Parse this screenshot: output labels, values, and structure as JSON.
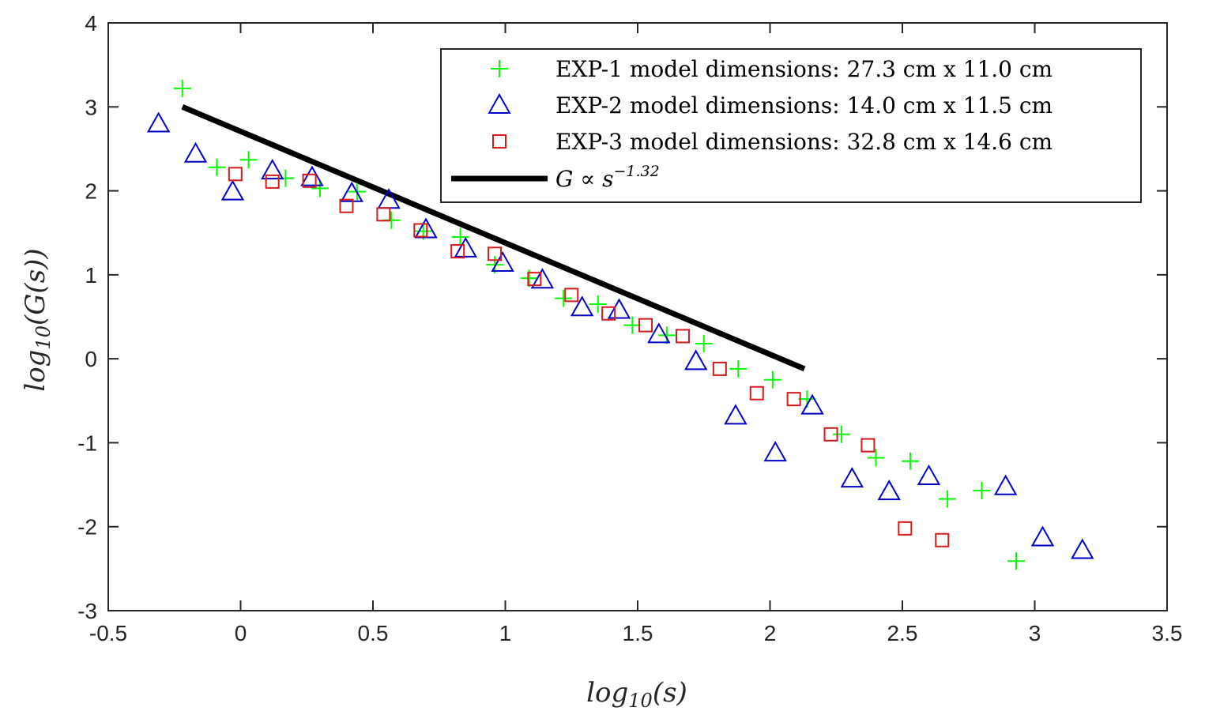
{
  "chart_data": {
    "type": "scatter",
    "xlabel": "log10(s)",
    "ylabel": "log10(G(s))",
    "xlim": [
      -0.5,
      3.5
    ],
    "ylim": [
      -3,
      4
    ],
    "xticks": [
      -0.5,
      0,
      0.5,
      1,
      1.5,
      2,
      2.5,
      3,
      3.5
    ],
    "yticks": [
      -3,
      -2,
      -1,
      0,
      1,
      2,
      3,
      4
    ],
    "xtick_labels": [
      "-0.5",
      "0",
      "0.5",
      "1",
      "1.5",
      "2",
      "2.5",
      "3",
      "3.5"
    ],
    "ytick_labels": [
      "-3",
      "-2",
      "-1",
      "0",
      "1",
      "2",
      "3",
      "4"
    ],
    "grid": false,
    "legend_position": "top-right",
    "series": [
      {
        "name": "EXP-1 model dimensions: 27.3 cm x 11.0 cm",
        "marker": "plus",
        "color": "#00ff00",
        "points": [
          [
            -0.22,
            3.22
          ],
          [
            -0.09,
            2.28
          ],
          [
            0.03,
            2.37
          ],
          [
            0.17,
            2.15
          ],
          [
            0.3,
            2.03
          ],
          [
            0.44,
            1.99
          ],
          [
            0.57,
            1.65
          ],
          [
            0.69,
            1.52
          ],
          [
            0.83,
            1.45
          ],
          [
            0.96,
            1.12
          ],
          [
            1.09,
            0.96
          ],
          [
            1.22,
            0.72
          ],
          [
            1.35,
            0.65
          ],
          [
            1.48,
            0.4
          ],
          [
            1.61,
            0.28
          ],
          [
            1.75,
            0.18
          ],
          [
            1.88,
            -0.12
          ],
          [
            2.01,
            -0.25
          ],
          [
            2.14,
            -0.48
          ],
          [
            2.27,
            -0.9
          ],
          [
            2.4,
            -1.18
          ],
          [
            2.53,
            -1.22
          ],
          [
            2.67,
            -1.67
          ],
          [
            2.8,
            -1.57
          ],
          [
            2.93,
            -2.41
          ]
        ]
      },
      {
        "name": "EXP-2 model dimensions: 14.0 cm x 11.5 cm",
        "marker": "triangle",
        "color": "#0000c8",
        "points": [
          [
            -0.31,
            2.8
          ],
          [
            -0.17,
            2.44
          ],
          [
            -0.03,
            1.99
          ],
          [
            0.12,
            2.24
          ],
          [
            0.27,
            2.16
          ],
          [
            0.42,
            1.97
          ],
          [
            0.56,
            1.89
          ],
          [
            0.7,
            1.54
          ],
          [
            0.85,
            1.31
          ],
          [
            0.99,
            1.14
          ],
          [
            1.14,
            0.94
          ],
          [
            1.29,
            0.61
          ],
          [
            1.43,
            0.58
          ],
          [
            1.58,
            0.29
          ],
          [
            1.72,
            -0.03
          ],
          [
            1.87,
            -0.68
          ],
          [
            2.02,
            -1.12
          ],
          [
            2.16,
            -0.56
          ],
          [
            2.31,
            -1.43
          ],
          [
            2.45,
            -1.58
          ],
          [
            2.6,
            -1.4
          ],
          [
            2.89,
            -1.52
          ],
          [
            3.03,
            -2.13
          ],
          [
            3.18,
            -2.28
          ]
        ]
      },
      {
        "name": "EXP-3 model dimensions: 32.8 cm x 14.6 cm",
        "marker": "square",
        "color": "#d7191c",
        "points": [
          [
            -0.02,
            2.2
          ],
          [
            0.12,
            2.11
          ],
          [
            0.26,
            2.12
          ],
          [
            0.4,
            1.82
          ],
          [
            0.54,
            1.72
          ],
          [
            0.68,
            1.53
          ],
          [
            0.82,
            1.28
          ],
          [
            0.96,
            1.25
          ],
          [
            1.11,
            0.95
          ],
          [
            1.25,
            0.76
          ],
          [
            1.39,
            0.54
          ],
          [
            1.53,
            0.4
          ],
          [
            1.67,
            0.27
          ],
          [
            1.81,
            -0.12
          ],
          [
            1.95,
            -0.41
          ],
          [
            2.09,
            -0.48
          ],
          [
            2.23,
            -0.9
          ],
          [
            2.37,
            -1.03
          ],
          [
            2.51,
            -2.02
          ],
          [
            2.65,
            -2.16
          ]
        ]
      }
    ],
    "fit_line": {
      "name": "G ∝ s^(-1.32)",
      "label_base": "G ∝ s",
      "label_exponent": "−1.32",
      "slope": -1.32,
      "color": "#000000",
      "points": [
        [
          -0.22,
          3.0
        ],
        [
          2.13,
          -0.12
        ]
      ]
    }
  }
}
